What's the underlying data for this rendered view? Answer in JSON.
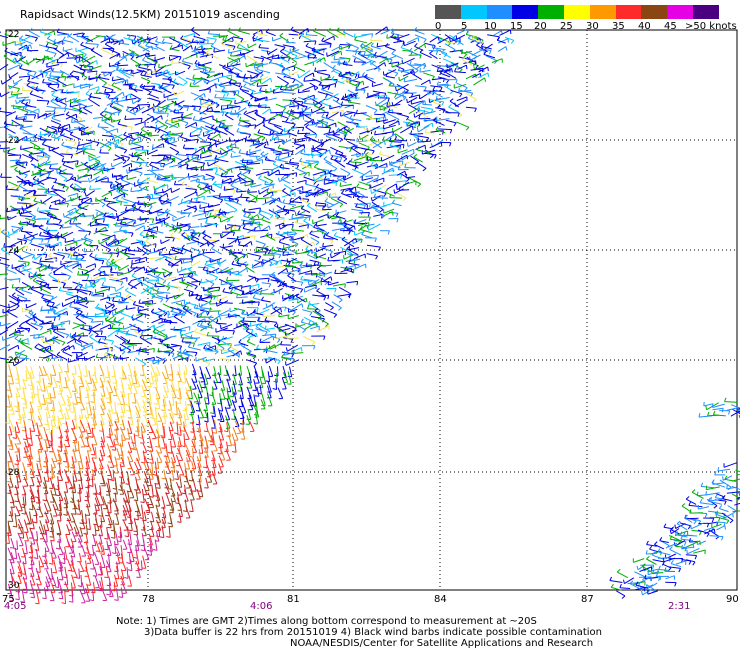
{
  "header": {
    "title": "Rapidsact Winds(12.5KM) 20151019 ascending"
  },
  "legend": {
    "labels": [
      "0",
      "5",
      "10",
      "15",
      "20",
      "25",
      "30",
      "35",
      "40",
      "45",
      ">50 knots"
    ],
    "colors": [
      "#555555",
      "#00c8ff",
      "#1f8fff",
      "#0000e6",
      "#00b000",
      "#ffff00",
      "#ff9900",
      "#ff2a2a",
      "#8b4513",
      "#e600e6",
      "#4b0082"
    ]
  },
  "axes": {
    "x_ticks": [
      "78",
      "81",
      "84",
      "87",
      "90"
    ],
    "y_ticks": [
      "22",
      "24",
      "26",
      "28",
      "30"
    ],
    "corner_lon": "75",
    "corner_lat": "30"
  },
  "times": {
    "left": "4:05",
    "mid": "4:06",
    "right": "2:31"
  },
  "notes": {
    "line1": "Note: 1) Times are GMT 2)Times along bottom correspond to measurement at ~20S",
    "line2": "3)Data buffer is 22 hrs from 20151019 4) Black wind barbs indicate possible contamination",
    "line3": "NOAA/NESDIS/Center for Satellite Applications and Research"
  }
}
